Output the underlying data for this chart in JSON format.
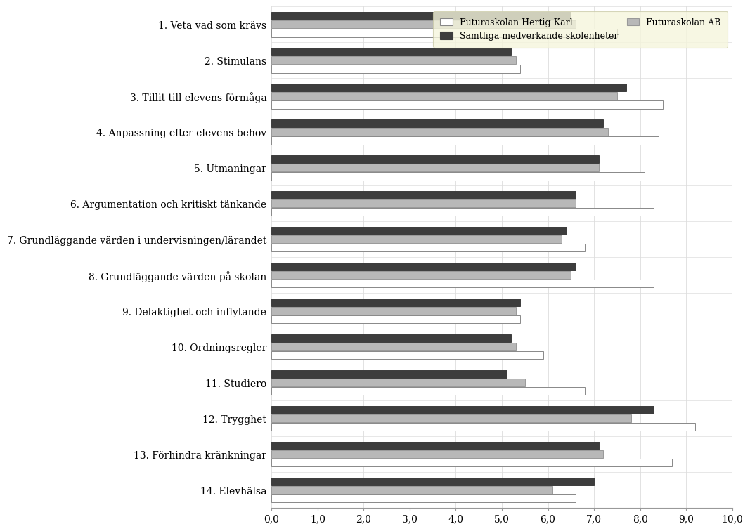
{
  "categories": [
    "1. Veta vad som krävs",
    "2. Stimulans",
    "3. Tillit till elevens förmåga",
    "4. Anpassning efter elevens behov",
    "5. Utmaningar",
    "6. Argumentation och kritiskt tänkande",
    "7. Grundläggande värden i undervisningen/lärandet",
    "8. Grundläggande värden på skolan",
    "9. Delaktighet och inflytande",
    "10. Ordningsregler",
    "11. Studiero",
    "12. Trygghet",
    "13. Förhindra kränkningar",
    "14. Elevhälsa"
  ],
  "series": {
    "Futuraskolan Hertig Karl": [
      7.5,
      5.4,
      8.5,
      8.4,
      8.1,
      8.3,
      6.8,
      8.3,
      5.4,
      5.9,
      6.8,
      9.2,
      8.7,
      6.6
    ],
    "Samtliga medverkande skolenheter": [
      6.5,
      5.2,
      7.7,
      7.2,
      7.1,
      6.6,
      6.4,
      6.6,
      5.4,
      5.2,
      5.1,
      8.3,
      7.1,
      7.0
    ],
    "Futuraskolan AB": [
      6.6,
      5.3,
      7.5,
      7.3,
      7.1,
      6.6,
      6.3,
      6.5,
      5.3,
      5.3,
      5.5,
      7.8,
      7.2,
      6.1
    ]
  },
  "colors": {
    "Futuraskolan Hertig Karl": "#ffffff",
    "Samtliga medverkande skolenheter": "#3d3d3d",
    "Futuraskolan AB": "#b8b8b8"
  },
  "edge_colors": {
    "Futuraskolan Hertig Karl": "#888888",
    "Samtliga medverkande skolenheter": "#3d3d3d",
    "Futuraskolan AB": "#999999"
  },
  "xlim": [
    0,
    10
  ],
  "xticks": [
    0.0,
    1.0,
    2.0,
    3.0,
    4.0,
    5.0,
    6.0,
    7.0,
    8.0,
    9.0,
    10.0
  ],
  "xtick_labels": [
    "0,0",
    "1,0",
    "2,0",
    "3,0",
    "4,0",
    "5,0",
    "6,0",
    "7,0",
    "8,0",
    "9,0",
    "10,0"
  ],
  "legend_bg": "#f5f5dc",
  "legend_edge": "#ccccaa",
  "background_color": "#ffffff",
  "bar_height": 0.22,
  "bar_spacing": 0.24,
  "separator_color": "#dddddd",
  "grid_color": "#dddddd",
  "spine_color": "#999999"
}
